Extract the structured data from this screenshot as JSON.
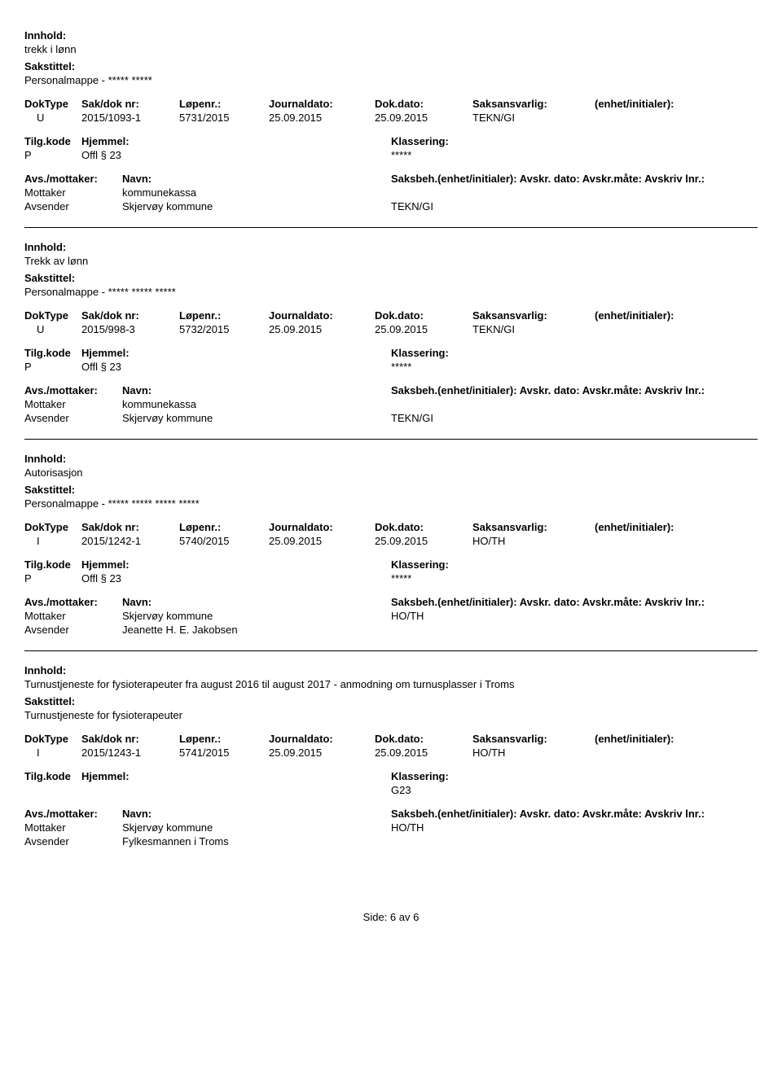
{
  "labels": {
    "innhold": "Innhold:",
    "sakstittel": "Sakstittel:",
    "doktype": "DokType",
    "sakdoknr": "Sak/dok nr:",
    "lopenr": "Løpenr.:",
    "journaldato": "Journaldato:",
    "dokdato": "Dok.dato:",
    "saksansvarlig": "Saksansvarlig:",
    "enhet_initialer": "(enhet/initialer):",
    "tilgkode": "Tilg.kode",
    "hjemmel": "Hjemmel:",
    "klassering": "Klassering:",
    "avs_mottaker": "Avs./mottaker:",
    "navn": "Navn:",
    "saksbeh_line": "Saksbeh.(enhet/initialer): Avskr. dato:  Avskr.måte: Avskriv lnr.:",
    "mottaker": "Mottaker",
    "avsender": "Avsender"
  },
  "records": [
    {
      "innhold": "trekk i lønn",
      "sakstittel": "Personalmappe - ***** *****",
      "doktype": "U",
      "sakdoknr": "2015/1093-1",
      "lopenr": "5731/2015",
      "journaldato": "25.09.2015",
      "dokdato": "25.09.2015",
      "saksansvarlig": "TEKN/GI",
      "tilgkode": "P",
      "hjemmel": "Offl § 23",
      "klassering": "*****",
      "mottaker_navn": "kommunekassa",
      "mottaker_unit": "",
      "avsender_navn": "Skjervøy kommune",
      "avsender_unit": "TEKN/GI"
    },
    {
      "innhold": "Trekk av lønn",
      "sakstittel": "Personalmappe - ***** ***** *****",
      "doktype": "U",
      "sakdoknr": "2015/998-3",
      "lopenr": "5732/2015",
      "journaldato": "25.09.2015",
      "dokdato": "25.09.2015",
      "saksansvarlig": "TEKN/GI",
      "tilgkode": "P",
      "hjemmel": "Offl § 23",
      "klassering": "*****",
      "mottaker_navn": "kommunekassa",
      "mottaker_unit": "",
      "avsender_navn": "Skjervøy kommune",
      "avsender_unit": "TEKN/GI"
    },
    {
      "innhold": "Autorisasjon",
      "sakstittel": "Personalmappe - ***** ***** ***** *****",
      "doktype": "I",
      "sakdoknr": "2015/1242-1",
      "lopenr": "5740/2015",
      "journaldato": "25.09.2015",
      "dokdato": "25.09.2015",
      "saksansvarlig": "HO/TH",
      "tilgkode": "P",
      "hjemmel": "Offl § 23",
      "klassering": "*****",
      "mottaker_navn": "Skjervøy kommune",
      "mottaker_unit": "HO/TH",
      "avsender_navn": "Jeanette H. E. Jakobsen",
      "avsender_unit": ""
    },
    {
      "innhold": "Turnustjeneste for fysioterapeuter fra august 2016 til august 2017 - anmodning om turnusplasser i Troms",
      "sakstittel": "Turnustjeneste for fysioterapeuter",
      "doktype": "I",
      "sakdoknr": "2015/1243-1",
      "lopenr": "5741/2015",
      "journaldato": "25.09.2015",
      "dokdato": "25.09.2015",
      "saksansvarlig": "HO/TH",
      "tilgkode": "",
      "hjemmel": "",
      "klassering": "G23",
      "mottaker_navn": "Skjervøy kommune",
      "mottaker_unit": "HO/TH",
      "avsender_navn": "Fylkesmannen i Troms",
      "avsender_unit": ""
    }
  ],
  "footer": "Side: 6 av 6"
}
